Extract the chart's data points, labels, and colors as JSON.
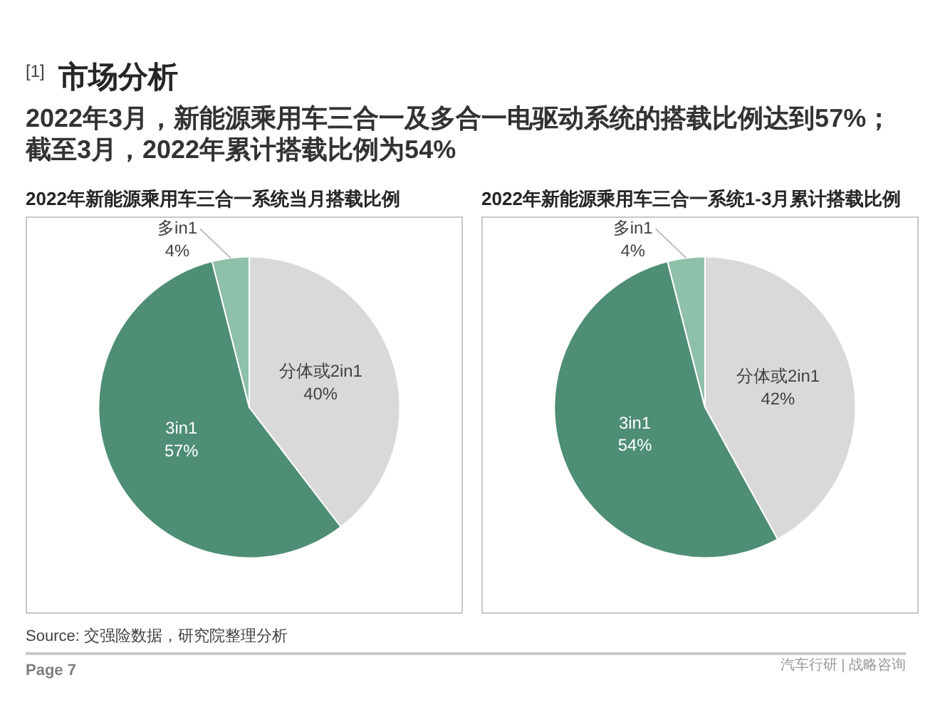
{
  "chart_data": [
    {
      "type": "other",
      "title": "$^{[1]}$ 市场分析",
      "subtitle": "2022年3月，新能源乘用车三合一及多合一电驱动系统的搭载比例达到57%；截至3月，2022年累计搭载比例为54%"
    },
    {
      "type": "pie",
      "title": "2022年新能源乘用车三合一系统当月搭载比例",
      "categories": [
        "分体或2in1",
        "3in1",
        "多in1"
      ],
      "values": [
        40,
        57,
        4
      ],
      "colors": [
        "#d9d9d9",
        "#4e8e74",
        "#8fc0a9"
      ],
      "value_labels": [
        "40%",
        "57%",
        "4%"
      ]
    },
    {
      "type": "pie",
      "title": "2022年新能源乘用车三合一系统1-3月累计搭载比例",
      "categories": [
        "分体或2in1",
        "3in1",
        "多in1"
      ],
      "values": [
        42,
        54,
        4
      ],
      "colors": [
        "#d9d9d9",
        "#4e8e74",
        "#8fc0a9"
      ],
      "value_labels": [
        "42%",
        "54%",
        "4%"
      ]
    },
    {
      "type": "other",
      "annotations": [
        "Source: 交强险数据，研究院整理分析",
        "Page 7",
        "汽车行研 | 战略咨询"
      ]
    }
  ]
}
